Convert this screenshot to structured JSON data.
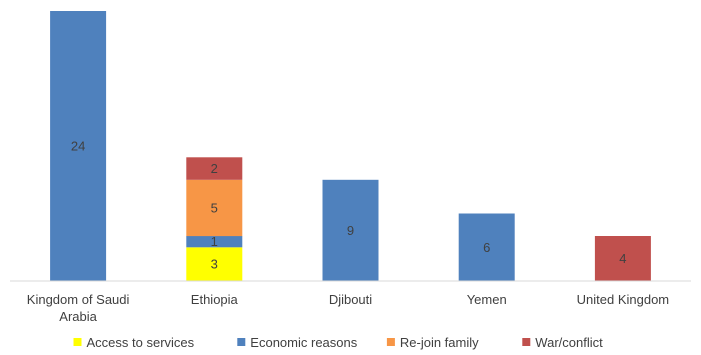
{
  "chart_data": {
    "type": "bar",
    "stacked": true,
    "categories": [
      "Kingdom of Saudi Arabia",
      "Ethiopia",
      "Djibouti",
      "Yemen",
      "United Kingdom"
    ],
    "category_lines": [
      [
        "Kingdom of Saudi",
        "Arabia"
      ],
      [
        "Ethiopia"
      ],
      [
        "Djibouti"
      ],
      [
        "Yemen"
      ],
      [
        "United Kingdom"
      ]
    ],
    "series": [
      {
        "name": "Access to services",
        "color": "#ffff00",
        "values": [
          0,
          3,
          0,
          0,
          0
        ]
      },
      {
        "name": "Economic reasons",
        "color": "#4f81bd",
        "values": [
          24,
          1,
          9,
          6,
          0
        ]
      },
      {
        "name": "Re-join family",
        "color": "#f79646",
        "values": [
          0,
          5,
          0,
          0,
          0
        ]
      },
      {
        "name": "War/conflict",
        "color": "#c0504d",
        "values": [
          0,
          2,
          0,
          0,
          4
        ]
      }
    ],
    "ylim": [
      0,
      24
    ],
    "grid": false,
    "legend_position": "bottom",
    "title": "",
    "xlabel": "",
    "ylabel": ""
  }
}
